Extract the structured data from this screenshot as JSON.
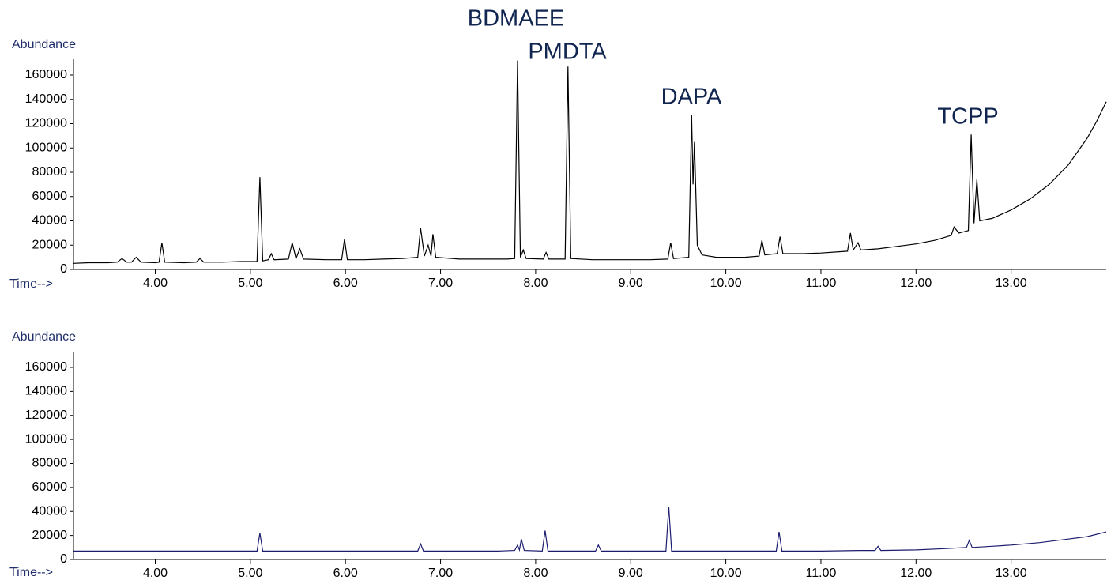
{
  "chart_data": [
    {
      "type": "line",
      "y_label": "Abundance",
      "x_label": "Time-->",
      "color": "#000000",
      "annotations": [
        "BDMAEE",
        "PMDTA",
        "DAPA",
        "TCPP"
      ],
      "x": [
        3.14,
        3.3,
        3.5,
        3.6,
        3.65,
        3.7,
        3.75,
        3.8,
        3.85,
        4.0,
        4.04,
        4.07,
        4.1,
        4.3,
        4.43,
        4.47,
        4.51,
        4.7,
        4.9,
        5.07,
        5.1,
        5.13,
        5.19,
        5.22,
        5.25,
        5.4,
        5.44,
        5.48,
        5.52,
        5.56,
        5.8,
        5.96,
        5.99,
        6.02,
        6.2,
        6.4,
        6.6,
        6.76,
        6.79,
        6.83,
        6.87,
        6.9,
        6.92,
        6.95,
        7.2,
        7.5,
        7.7,
        7.78,
        7.81,
        7.84,
        7.87,
        7.9,
        8.08,
        8.11,
        8.14,
        8.31,
        8.34,
        8.37,
        8.6,
        8.9,
        9.2,
        9.39,
        9.42,
        9.45,
        9.61,
        9.64,
        9.655,
        9.67,
        9.7,
        9.75,
        9.9,
        10.2,
        10.35,
        10.38,
        10.41,
        10.54,
        10.57,
        10.6,
        10.8,
        11.0,
        11.28,
        11.31,
        11.34,
        11.39,
        11.42,
        11.6,
        11.8,
        12.0,
        12.2,
        12.37,
        12.4,
        12.45,
        12.55,
        12.58,
        12.61,
        12.64,
        12.67,
        12.8,
        13.0,
        13.2,
        13.4,
        13.6,
        13.8,
        13.9,
        14.0
      ],
      "values": [
        5000,
        5500,
        5500,
        6000,
        9000,
        6000,
        6000,
        10000,
        6000,
        5500,
        6000,
        22000,
        6000,
        5500,
        6000,
        9000,
        6000,
        6000,
        6500,
        6500,
        76000,
        7000,
        8000,
        13000,
        8000,
        8500,
        22000,
        9000,
        17000,
        8500,
        8000,
        8000,
        25000,
        8000,
        8000,
        8500,
        9000,
        10000,
        34000,
        11000,
        20000,
        11000,
        29000,
        10000,
        8500,
        8500,
        8500,
        9000,
        172000,
        10000,
        16000,
        9000,
        8500,
        14000,
        8500,
        8500,
        167000,
        9000,
        8000,
        8000,
        8000,
        8500,
        22000,
        9000,
        10000,
        127000,
        70000,
        105000,
        20000,
        12000,
        10000,
        10000,
        11000,
        24000,
        12000,
        13000,
        27000,
        13000,
        13000,
        13500,
        15000,
        30000,
        16000,
        22000,
        16000,
        17000,
        19000,
        21000,
        24000,
        28000,
        35000,
        30000,
        32000,
        111000,
        38000,
        74000,
        40000,
        42000,
        49000,
        58000,
        70000,
        86000,
        108000,
        122000,
        138000
      ],
      "xlim": [
        3.14,
        14.0
      ],
      "xticks": [
        {
          "value": 4,
          "label": "4.00"
        },
        {
          "value": 5,
          "label": "5.00"
        },
        {
          "value": 6,
          "label": "6.00"
        },
        {
          "value": 7,
          "label": "7.00"
        },
        {
          "value": 8,
          "label": "8.00"
        },
        {
          "value": 9,
          "label": "9.00"
        },
        {
          "value": 10,
          "label": "10.00"
        },
        {
          "value": 11,
          "label": "11.00"
        },
        {
          "value": 12,
          "label": "12.00"
        },
        {
          "value": 13,
          "label": "13.00"
        }
      ],
      "ylim": [
        0,
        160000
      ],
      "yticks": [
        0,
        20000,
        40000,
        60000,
        80000,
        100000,
        120000,
        140000,
        160000
      ]
    },
    {
      "type": "line",
      "y_label": "Abundance",
      "x_label": "Time-->",
      "color": "#1c1c6e",
      "x": [
        3.14,
        3.5,
        4.0,
        4.5,
        5.0,
        5.07,
        5.1,
        5.13,
        5.5,
        6.0,
        6.5,
        6.76,
        6.79,
        6.82,
        7.2,
        7.6,
        7.78,
        7.81,
        7.83,
        7.85,
        7.88,
        8.07,
        8.1,
        8.13,
        8.4,
        8.63,
        8.66,
        8.69,
        9.0,
        9.37,
        9.4,
        9.43,
        9.8,
        10.2,
        10.53,
        10.56,
        10.59,
        11.0,
        11.4,
        11.57,
        11.6,
        11.63,
        12.0,
        12.3,
        12.53,
        12.56,
        12.59,
        12.8,
        13.0,
        13.3,
        13.6,
        13.8,
        14.0
      ],
      "values": [
        7000,
        7000,
        7000,
        7000,
        7000,
        7000,
        22000,
        7000,
        7000,
        7000,
        7000,
        7000,
        13000,
        7000,
        7000,
        7000,
        7500,
        12000,
        8000,
        17000,
        7500,
        7000,
        24000,
        7000,
        7000,
        7000,
        12000,
        7000,
        7000,
        7000,
        44000,
        7000,
        7000,
        7000,
        7000,
        23000,
        7000,
        7000,
        7500,
        7500,
        11000,
        7500,
        8000,
        9000,
        10000,
        16000,
        10000,
        11000,
        12000,
        14000,
        17000,
        19000,
        23000
      ],
      "xlim": [
        3.14,
        14.0
      ],
      "xticks": [
        {
          "value": 4,
          "label": "4.00"
        },
        {
          "value": 5,
          "label": "5.00"
        },
        {
          "value": 6,
          "label": "6.00"
        },
        {
          "value": 7,
          "label": "7.00"
        },
        {
          "value": 8,
          "label": "8.00"
        },
        {
          "value": 9,
          "label": "9.00"
        },
        {
          "value": 10,
          "label": "10.00"
        },
        {
          "value": 11,
          "label": "11.00"
        },
        {
          "value": 12,
          "label": "12.00"
        },
        {
          "value": 13,
          "label": "13.00"
        }
      ],
      "ylim": [
        0,
        160000
      ],
      "yticks": [
        0,
        20000,
        40000,
        60000,
        80000,
        100000,
        120000,
        140000,
        160000
      ]
    }
  ]
}
